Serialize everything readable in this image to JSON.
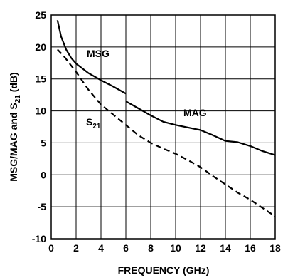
{
  "chart_data": {
    "type": "line",
    "title": "",
    "xlabel": "FREQUENCY (GHz)",
    "ylabel": {
      "prefix": "MSG/MAG and S",
      "subscript": "21",
      "suffix": " (dB)"
    },
    "xlim": [
      0,
      18
    ],
    "ylim": [
      -10,
      25
    ],
    "x_ticks": [
      0,
      2,
      4,
      6,
      8,
      10,
      12,
      14,
      16,
      18
    ],
    "y_ticks": [
      -10,
      -5,
      0,
      5,
      10,
      15,
      20,
      25
    ],
    "grid": true,
    "series": [
      {
        "name": "MSG",
        "style": "solid",
        "color": "#000000",
        "points": [
          [
            0.5,
            24.2
          ],
          [
            0.8,
            21.6
          ],
          [
            1.2,
            19.6
          ],
          [
            1.6,
            18.3
          ],
          [
            2,
            17.4
          ],
          [
            3,
            15.9
          ],
          [
            4,
            14.8
          ],
          [
            5,
            13.8
          ],
          [
            6,
            12.7
          ]
        ]
      },
      {
        "name": "MAG",
        "style": "solid",
        "color": "#000000",
        "points": [
          [
            6,
            11.5
          ],
          [
            7,
            10.4
          ],
          [
            8,
            9.3
          ],
          [
            9,
            8.3
          ],
          [
            10,
            7.8
          ],
          [
            11,
            7.4
          ],
          [
            12,
            7.0
          ],
          [
            13,
            6.2
          ],
          [
            14,
            5.3
          ],
          [
            15,
            5.1
          ],
          [
            16,
            4.5
          ],
          [
            17,
            3.7
          ],
          [
            18,
            3.1
          ]
        ]
      },
      {
        "name": "S21",
        "label_main": "S",
        "label_sub": "21",
        "style": "dashed",
        "color": "#000000",
        "points": [
          [
            0.5,
            19.6
          ],
          [
            1,
            18.6
          ],
          [
            2,
            16.1
          ],
          [
            3,
            13.3
          ],
          [
            4,
            11.0
          ],
          [
            5,
            9.4
          ],
          [
            6,
            7.8
          ],
          [
            7,
            6.2
          ],
          [
            8,
            5.0
          ],
          [
            9,
            4.1
          ],
          [
            10,
            3.3
          ],
          [
            11,
            2.3
          ],
          [
            12,
            1.2
          ],
          [
            13,
            -0.2
          ],
          [
            14,
            -1.5
          ],
          [
            15,
            -2.8
          ],
          [
            16,
            -3.9
          ],
          [
            17,
            -5.2
          ],
          [
            18,
            -6.5
          ]
        ]
      }
    ],
    "series_labels": {
      "msg": "MSG",
      "mag": "MAG"
    }
  }
}
